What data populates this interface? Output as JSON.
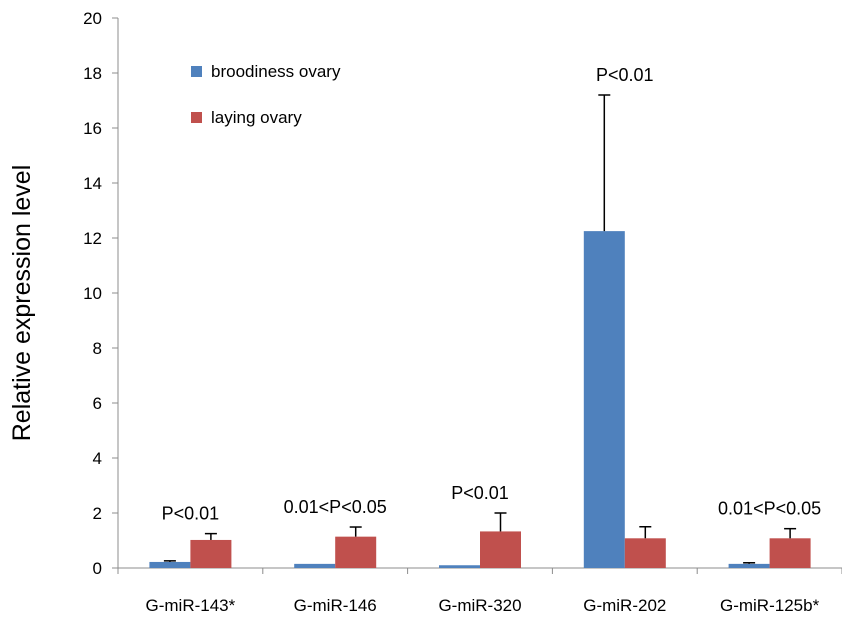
{
  "chart_data": {
    "type": "bar",
    "title": "",
    "xlabel": "",
    "ylabel": "Relative expression level",
    "ylim": [
      0,
      20
    ],
    "yticks": [
      0,
      2,
      4,
      6,
      8,
      10,
      12,
      14,
      16,
      18,
      20
    ],
    "categories": [
      "G-miR-143*",
      "G-miR-146",
      "G-miR-320",
      "G-miR-202",
      "G-miR-125b*"
    ],
    "series": [
      {
        "name": "broodiness ovary",
        "color": "#4f81bd",
        "values": [
          0.22,
          0.15,
          0.1,
          12.25,
          0.15
        ],
        "errors": [
          0.04,
          0.0,
          0.0,
          4.95,
          0.04
        ]
      },
      {
        "name": "laying ovary",
        "color": "#c0504d",
        "values": [
          1.02,
          1.14,
          1.33,
          1.08,
          1.08
        ],
        "errors": [
          0.23,
          0.35,
          0.67,
          0.42,
          0.35
        ]
      }
    ],
    "annotations": [
      "P<0.01",
      "0.01<P<0.05",
      "P<0.01",
      "P<0.01",
      "0.01<P<0.05"
    ],
    "legend_position": "top-left",
    "grid": false
  }
}
